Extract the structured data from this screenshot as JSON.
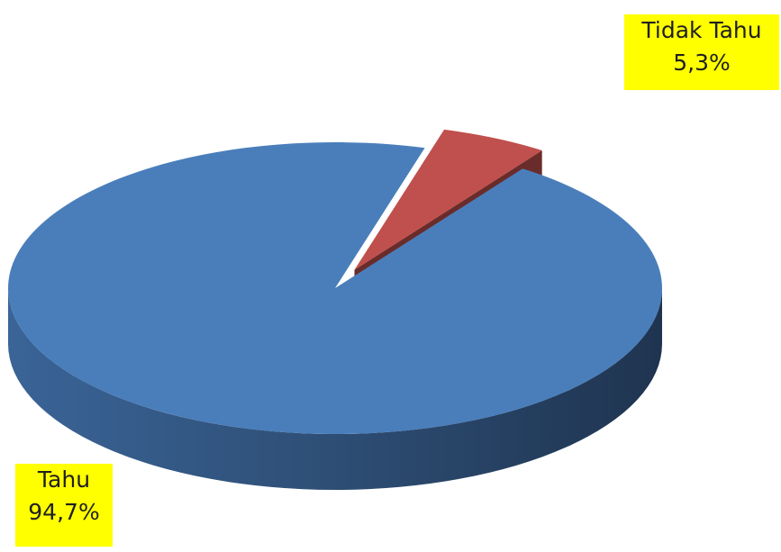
{
  "chart_data": {
    "type": "pie",
    "style": "3d",
    "slices": [
      {
        "name": "Tahu",
        "value": 94.7,
        "display": "94,7%",
        "color": "#4a7ebb",
        "exploded": false
      },
      {
        "name": "Tidak Tahu",
        "value": 5.3,
        "display": "5,3%",
        "color": "#c0504d",
        "exploded": true
      }
    ],
    "label_background": "#ffff00",
    "title": "",
    "legend": "none"
  },
  "labels": {
    "tahu": {
      "name": "Tahu",
      "value": "94,7%"
    },
    "tidak_tahu": {
      "name": "Tidak Tahu",
      "value": "5,3%"
    }
  }
}
